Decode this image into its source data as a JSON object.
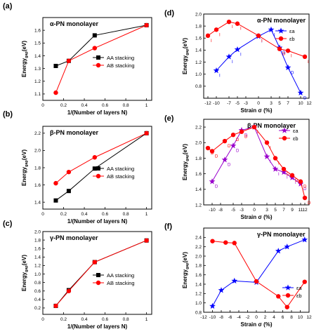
{
  "chart_data": [
    {
      "id": "a",
      "panel_label": "(a)",
      "type": "line",
      "title": "α-PN monolayer",
      "xlabel": "1/(Number of layers N)",
      "ylabel": "Energy_gap(eV)",
      "xlim": [
        0,
        1.05
      ],
      "ylim": [
        1.05,
        1.7
      ],
      "xticks": [
        0.0,
        0.2,
        0.4,
        0.6,
        0.8,
        1.0
      ],
      "yticks": [
        1.1,
        1.2,
        1.3,
        1.4,
        1.5,
        1.6
      ],
      "legend_position": "right",
      "series": [
        {
          "name": "AA stacking",
          "color": "#000000",
          "marker": "square",
          "x": [
            0.125,
            0.25,
            0.5,
            1.0
          ],
          "y": [
            1.32,
            1.36,
            1.56,
            1.64
          ]
        },
        {
          "name": "AB stacking",
          "color": "#ff0000",
          "marker": "circle",
          "x": [
            0.125,
            0.25,
            0.5,
            1.0
          ],
          "y": [
            1.11,
            1.36,
            1.46,
            1.64
          ]
        }
      ]
    },
    {
      "id": "b",
      "panel_label": "(b)",
      "type": "line",
      "title": "β-PN monolayer",
      "xlabel": "1/(Number of layers N)",
      "ylabel": "Energy_gap(eV)",
      "xlim": [
        0,
        1.05
      ],
      "ylim": [
        1.32,
        2.28
      ],
      "xticks": [
        0.0,
        0.2,
        0.4,
        0.6,
        0.8,
        1.0
      ],
      "yticks": [
        1.4,
        1.6,
        1.8,
        2.0,
        2.2
      ],
      "legend_position": "right",
      "series": [
        {
          "name": "AA stacking",
          "color": "#000000",
          "marker": "square",
          "x": [
            0.125,
            0.25,
            0.5,
            1.0
          ],
          "y": [
            1.42,
            1.53,
            1.79,
            2.2
          ]
        },
        {
          "name": "AB stacking",
          "color": "#ff0000",
          "marker": "circle",
          "x": [
            0.125,
            0.25,
            0.5,
            1.0
          ],
          "y": [
            1.62,
            1.75,
            1.92,
            2.2
          ]
        }
      ]
    },
    {
      "id": "c",
      "panel_label": "(c)",
      "type": "line",
      "title": "γ-PN monolayer",
      "xlabel": "1/(Number of layers N)",
      "ylabel": "Energy_gap(eV)",
      "xlim": [
        0,
        1.05
      ],
      "ylim": [
        0.05,
        2.0
      ],
      "xticks": [
        0.0,
        0.2,
        0.4,
        0.6,
        0.8,
        1.0
      ],
      "yticks": [
        0.2,
        0.4,
        0.6,
        0.8,
        1.0,
        1.2,
        1.4,
        1.6,
        1.8,
        2.0
      ],
      "legend_position": "right",
      "series": [
        {
          "name": "AA stacking",
          "color": "#000000",
          "marker": "square",
          "x": [
            0.125,
            0.25,
            0.5,
            1.0
          ],
          "y": [
            0.25,
            0.62,
            1.28,
            1.79
          ]
        },
        {
          "name": "AB stacking",
          "color": "#ff0000",
          "marker": "circle",
          "x": [
            0.125,
            0.25,
            0.5,
            1.0
          ],
          "y": [
            0.25,
            0.6,
            1.28,
            1.79
          ]
        }
      ]
    },
    {
      "id": "d",
      "panel_label": "(d)",
      "type": "line",
      "title": "α-PN monolayer",
      "xlabel": "Strain σ (%)",
      "ylabel": "Energy_gap(eV)",
      "xlim": [
        -13,
        12
      ],
      "ylim": [
        0.6,
        2.0
      ],
      "xticks": [
        -12,
        -10,
        -7,
        -5,
        -3,
        0,
        3,
        5,
        7,
        10,
        12
      ],
      "yticks": [
        0.8,
        1.0,
        1.2,
        1.4,
        1.6,
        1.8,
        2.0
      ],
      "legend_position": "right",
      "series": [
        {
          "name": "ε_a",
          "color": "#0000ff",
          "marker": "star",
          "x": [
            -10,
            -7,
            -5,
            0,
            3,
            5,
            7,
            10
          ],
          "y": [
            1.06,
            1.29,
            1.41,
            1.63,
            1.74,
            1.44,
            1.11,
            0.69
          ],
          "point_labels": [
            "I",
            "I",
            "I",
            "I",
            "I",
            "D",
            "D",
            "D"
          ]
        },
        {
          "name": "ε_b",
          "color": "#ff0000",
          "marker": "circle",
          "x": [
            -12,
            -10,
            -7,
            -5,
            0,
            5,
            7,
            11
          ],
          "y": [
            1.64,
            1.74,
            1.87,
            1.84,
            1.64,
            1.42,
            1.39,
            1.29
          ],
          "point_labels": [
            "I",
            "I",
            "I",
            "I",
            "I",
            "D",
            "I",
            "I"
          ]
        }
      ]
    },
    {
      "id": "e",
      "panel_label": "(e)",
      "type": "line",
      "title": "β-PN monolayer",
      "xlabel": "Strain σ (%)",
      "ylabel": "Energy_gap(eV)",
      "xlim": [
        -12,
        13
      ],
      "ylim": [
        1.2,
        2.3
      ],
      "xticks": [
        -10,
        -8,
        -5,
        -3,
        0,
        3,
        5,
        7,
        9,
        11,
        12
      ],
      "yticks": [
        1.2,
        1.4,
        1.6,
        1.8,
        2.0,
        2.2
      ],
      "legend_position": "right",
      "series": [
        {
          "name": "ε_a",
          "color": "#9900cc",
          "marker": "star",
          "x": [
            -10,
            -7,
            -5,
            -3,
            0,
            3,
            5,
            7,
            9,
            11
          ],
          "y": [
            1.5,
            1.78,
            1.96,
            2.16,
            2.2,
            1.82,
            1.66,
            1.62,
            1.55,
            1.47
          ],
          "point_labels": [
            "D",
            "D",
            "D",
            "D",
            "I",
            "I",
            "I",
            "I",
            "I",
            "D"
          ]
        },
        {
          "name": "ε_b",
          "color": "#ff0000",
          "marker": "circle",
          "x": [
            -11,
            -10,
            -7,
            -5,
            -3,
            0,
            3,
            5,
            7,
            9,
            11,
            12
          ],
          "y": [
            1.93,
            1.89,
            2.02,
            2.1,
            2.14,
            2.2,
            2.0,
            1.8,
            1.66,
            1.58,
            1.5,
            1.29
          ],
          "point_labels": [
            "D",
            "D",
            "D",
            "D",
            "D",
            "I",
            "I",
            "I",
            "D",
            "D",
            "D",
            "D"
          ]
        }
      ]
    },
    {
      "id": "f",
      "panel_label": "(f)",
      "type": "line",
      "title": "γ-PN monolayer",
      "xlabel": "Strain σ (%)",
      "ylabel": "Energy_gap(eV)",
      "xlim": [
        -12,
        12
      ],
      "ylim": [
        0.8,
        2.6
      ],
      "xticks": [
        -12,
        -10,
        -8,
        -6,
        -4,
        -2,
        0,
        2,
        4,
        6,
        8,
        10,
        12
      ],
      "yticks": [
        0.8,
        1.0,
        1.2,
        1.4,
        1.6,
        1.8,
        2.0,
        2.2,
        2.4
      ],
      "legend_position": "right",
      "series": [
        {
          "name": "ε_a",
          "color": "#0000ff",
          "marker": "star",
          "x": [
            -10,
            -8,
            -5,
            0,
            5,
            7,
            11
          ],
          "y": [
            0.93,
            1.27,
            1.47,
            1.44,
            2.11,
            2.2,
            2.35
          ]
        },
        {
          "name": "ε_b",
          "color": "#ff0000",
          "marker": "circle",
          "x": [
            -10,
            -7,
            -5,
            0,
            5,
            7,
            11
          ],
          "y": [
            2.32,
            2.29,
            2.28,
            1.46,
            1.14,
            0.91,
            1.45
          ]
        }
      ]
    }
  ]
}
